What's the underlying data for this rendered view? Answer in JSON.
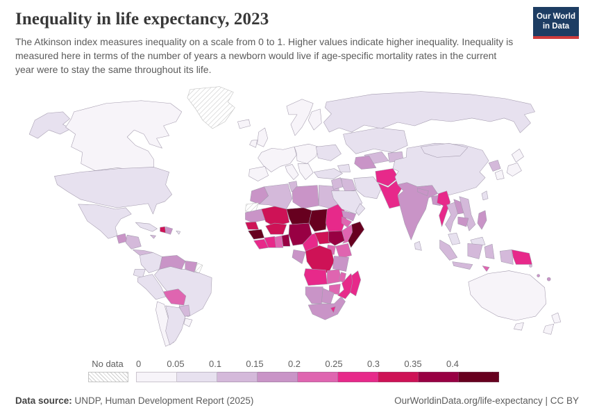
{
  "header": {
    "title": "Inequality in life expectancy, 2023",
    "subtitle": "The Atkinson index measures inequality on a scale from 0 to 1. Higher values indicate higher inequality. Inequality is measured here in terms of the number of years a newborn would live if age-specific mortality rates in the current year were to stay the same throughout its life.",
    "logo": {
      "line1": "Our World",
      "line2": "in Data",
      "bg_color": "#1d3d63",
      "accent_color": "#cf3c3c"
    }
  },
  "legend": {
    "no_data_label": "No data",
    "ticks": [
      "0",
      "0.05",
      "0.1",
      "0.15",
      "0.2",
      "0.25",
      "0.3",
      "0.35",
      "0.4"
    ],
    "band_colors": [
      "#f7f4f9",
      "#e7e1ef",
      "#d4b9da",
      "#c994c7",
      "#df65b0",
      "#e7298a",
      "#ce1256",
      "#980043",
      "#67001f"
    ]
  },
  "footer": {
    "datasource_label": "Data source:",
    "datasource": " UNDP, Human Development Report (2025)",
    "right": "OurWorldinData.org/life-expectancy | CC BY"
  },
  "chart_data": {
    "type": "choropleth",
    "title": "Inequality in life expectancy, 2023",
    "metric": "Atkinson index of inequality in life expectancy",
    "scale_note": "Scale from 0 to 1; higher values indicate higher inequality",
    "legend_position": "bottom",
    "bands": {
      "c1": {
        "range": "0–0.05",
        "color": "#f7f4f9"
      },
      "c2": {
        "range": "0.05–0.1",
        "color": "#e7e1ef"
      },
      "c3": {
        "range": "0.1–0.15",
        "color": "#d4b9da"
      },
      "c4": {
        "range": "0.15–0.2",
        "color": "#c994c7"
      },
      "c5": {
        "range": "0.2–0.25",
        "color": "#df65b0"
      },
      "c6": {
        "range": "0.25–0.3",
        "color": "#e7298a"
      },
      "c7": {
        "range": "0.3–0.35",
        "color": "#ce1256"
      },
      "c8": {
        "range": "0.35–0.4",
        "color": "#980043"
      },
      "c9": {
        "range": "0.4+",
        "color": "#67001f"
      },
      "nodata": {
        "range": "No data",
        "color": "hatch"
      }
    },
    "countries": {
      "greenland": "nodata",
      "western-sahara": "nodata",
      "french-guiana": "nodata",
      "canada": "c1",
      "iceland": "c1",
      "uk": "c1",
      "ireland": "c1",
      "scandinavia": "c1",
      "finland": "c1",
      "west-europe": "c1",
      "iberia": "c1",
      "italy": "c1",
      "central-europe": "c1",
      "balkans": "c1",
      "chile": "c1",
      "uruguay": "c1",
      "south-korea": "c1",
      "japan-north": "c1",
      "japan-south": "c1",
      "australia": "c1",
      "tasmania": "c1",
      "nz-north": "c1",
      "nz-south": "c1",
      "alaska": "c2",
      "usa": "c2",
      "mexico": "c2",
      "cuba": "c2",
      "puerto-rico": "c2",
      "colombia": "c2",
      "ecuador": "c2",
      "peru": "c2",
      "brazil": "c2",
      "argentina": "c2",
      "ukraine": "c2",
      "russia": "c2",
      "turkey": "c2",
      "saudi": "c2",
      "oman": "c2",
      "iran": "c2",
      "caucasus": "c2",
      "kazakhstan": "c2",
      "china": "c2",
      "mongolia": "c2",
      "taiwan": "c2",
      "malaysia": "c2",
      "borneo-malaysia": "c2",
      "sri-lanka": "c2",
      "honduras-nicaragua": "c3",
      "costa-panama": "c3",
      "jamaica": "c3",
      "paraguay": "c3",
      "algeria": "c3",
      "tunisia": "c3",
      "egypt": "c3",
      "levant": "c3",
      "iraq": "c3",
      "uzbekistan": "c3",
      "kyrgyz-tajik": "c3",
      "thailand": "c3",
      "vietnam": "c3",
      "north-korea": "c3",
      "sumatra": "c3",
      "java": "c3",
      "kalimantan": "c3",
      "sulawesi": "c3",
      "west-papua": "c3",
      "solomon": "c3",
      "guatemala": "c4",
      "dominican": "c4",
      "venezuela": "c4",
      "guyana-suriname": "c4",
      "morocco": "c4",
      "libya": "c4",
      "mauritania": "c4",
      "turkmenistan": "c4",
      "yemen": "c4",
      "india": "c4",
      "nepal": "c4",
      "bangladesh": "c4",
      "laos": "c4",
      "cambodia": "c4",
      "philippines": "c4",
      "congo-gabon": "c4",
      "tanzania": "c4",
      "namibia": "c4",
      "botswana": "c4",
      "south-africa": "c4",
      "vanuatu": "c4",
      "fiji": "c4",
      "bolivia": "c5",
      "ghana": "c5",
      "eritrea": "c5",
      "ethiopia": "c5",
      "kenya": "c5",
      "uganda": "c5",
      "zambia": "c5",
      "malawi": "c5",
      "zimbabwe": "c5",
      "timor": "c5",
      "sierra-leone-liberia": "c6",
      "ivory-coast": "c6",
      "cameroon": "c6",
      "sudan": "c6",
      "angola": "c6",
      "mozambique": "c6",
      "lesotho": "c6",
      "madagascar": "c6",
      "afghanistan": "c6",
      "pakistan": "c6",
      "myanmar": "c6",
      "png": "c6",
      "haiti": "c7",
      "mali": "c7",
      "burkina": "c7",
      "senegal": "c7",
      "car": "c7",
      "drc": "c7",
      "togo-benin": "c8",
      "nigeria": "c8",
      "south-sudan": "c8",
      "niger": "c9",
      "chad": "c9",
      "guinea": "c9",
      "somalia": "c9"
    }
  }
}
